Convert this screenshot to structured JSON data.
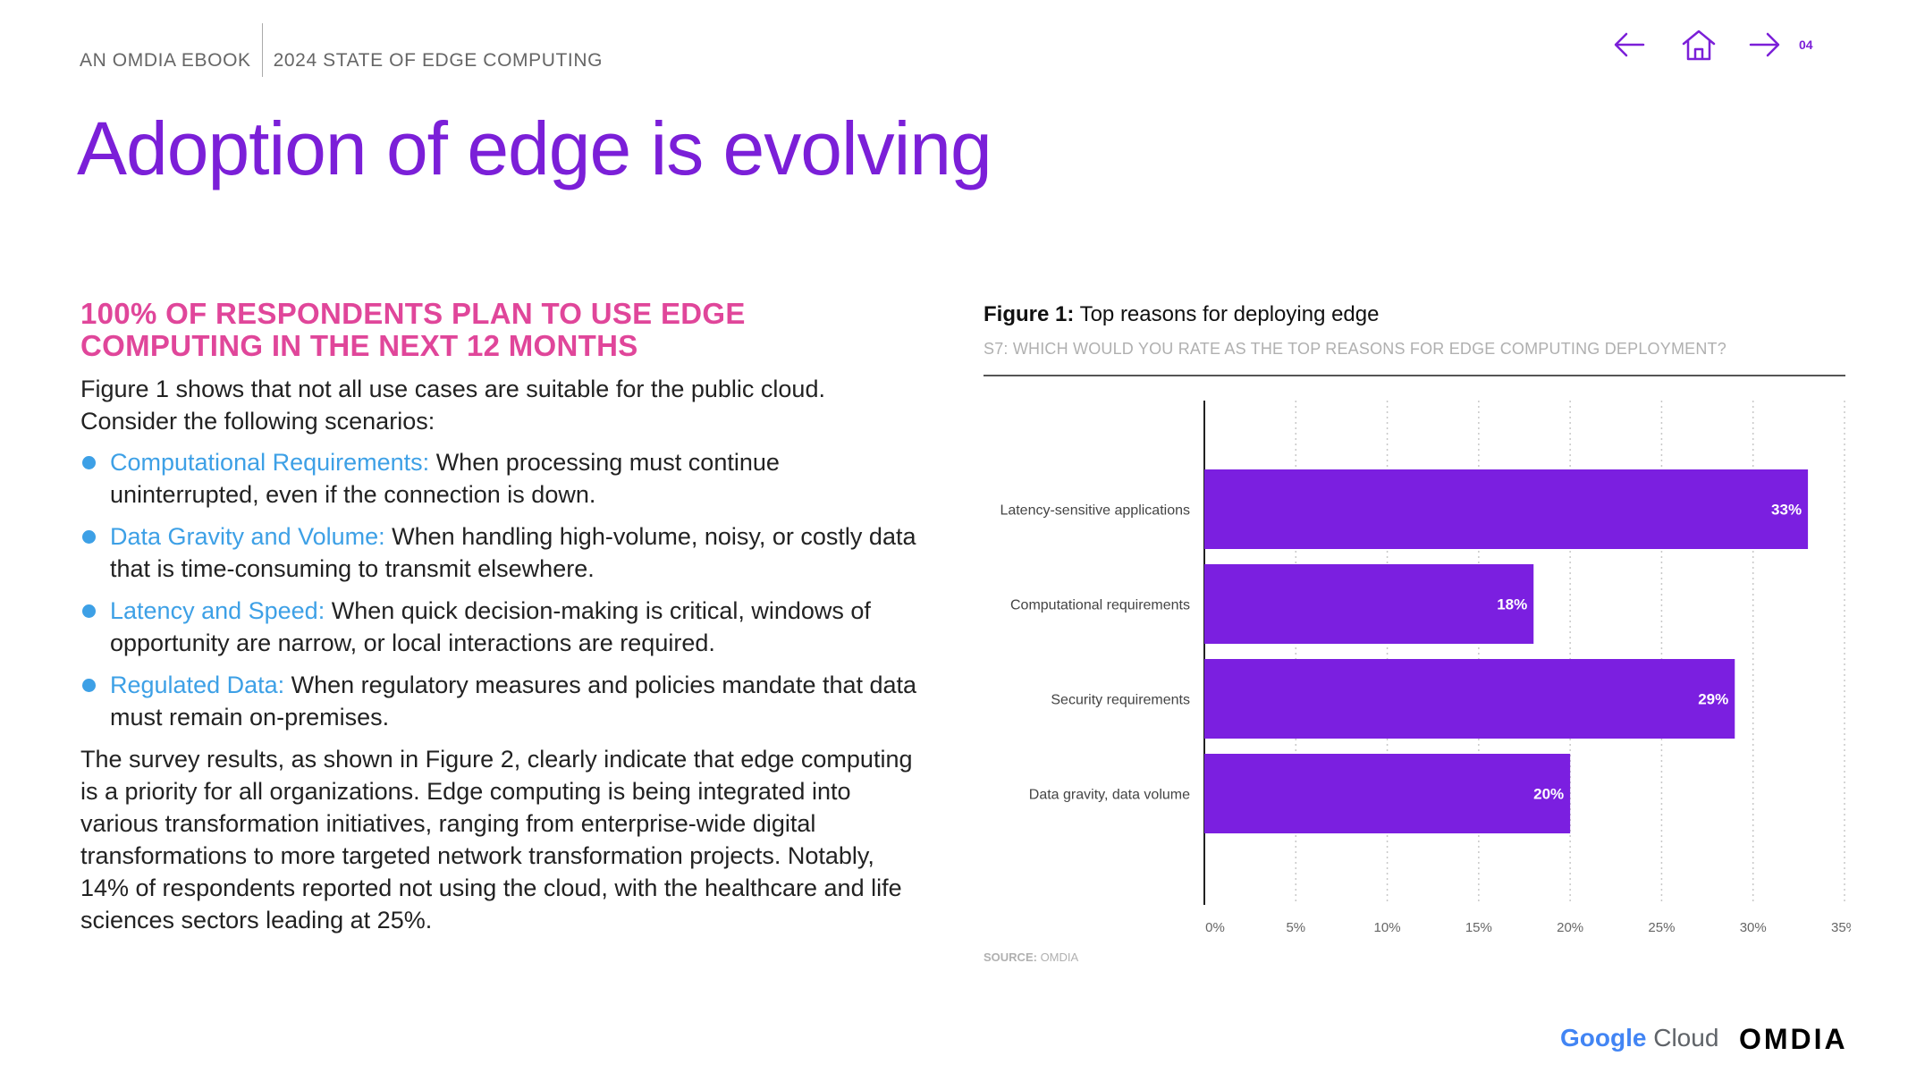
{
  "header": {
    "left": "AN OMDIA EBOOK",
    "right": "2024 STATE OF EDGE COMPUTING"
  },
  "nav": {
    "page_number": "04",
    "back_icon": "arrow-left-icon",
    "home_icon": "home-icon",
    "next_icon": "arrow-right-icon"
  },
  "title": "Adoption of edge is evolving",
  "left": {
    "subhead_line1": "100% OF RESPONDENTS PLAN TO USE EDGE",
    "subhead_line2": "COMPUTING IN THE NEXT 12 MONTHS",
    "intro": "Figure 1 shows that not all use cases are suitable for the public cloud. Consider the following scenarios:",
    "bullets": [
      {
        "label": "Computational Requirements:",
        "text": " When processing must continue uninterrupted, even if the connection is down."
      },
      {
        "label": "Data Gravity and Volume:",
        "text": " When handling high-volume, noisy, or costly data that is time-consuming to transmit elsewhere."
      },
      {
        "label": "Latency and Speed:",
        "text": " When quick decision-making is critical, windows of opportunity are narrow, or local interactions are required."
      },
      {
        "label": "Regulated Data:",
        "text": " When regulatory measures and policies mandate that data must remain on-premises."
      }
    ],
    "outro": "The survey results, as shown in Figure 2, clearly indicate that edge computing is a priority for all organizations. Edge computing is being integrated into various transformation initiatives, ranging from enterprise-wide digital transformations to more targeted network transformation projects. Notably, 14% of respondents reported not using the cloud, with the healthcare and life sciences sectors leading at 25%."
  },
  "figure": {
    "label": "Figure 1:",
    "title": " Top reasons for deploying edge",
    "question": "S7: WHICH WOULD YOU RATE AS THE TOP REASONS FOR EDGE COMPUTING DEPLOYMENT?",
    "source_label": "SOURCE:",
    "source_value": " OMDIA"
  },
  "chart_data": {
    "type": "bar",
    "orientation": "horizontal",
    "title": "Top reasons for deploying edge",
    "categories": [
      "Latency-sensitive applications",
      "Computational requirements",
      "Security requirements",
      "Data gravity, data volume"
    ],
    "values": [
      33,
      18,
      29,
      20
    ],
    "value_labels": [
      "33%",
      "18%",
      "29%",
      "20%"
    ],
    "xlim": [
      0,
      35
    ],
    "xticks": [
      "0%",
      "5%",
      "10%",
      "15%",
      "20%",
      "25%",
      "30%",
      "35%"
    ],
    "xtick_values": [
      0,
      5,
      10,
      15,
      20,
      25,
      30,
      35
    ],
    "grid": true,
    "bar_color": "#7b1fe0",
    "label_color": "#ffffff"
  },
  "footer": {
    "google_cloud_left": "Google",
    "google_cloud_right": " Cloud",
    "omdia": "OMDIA"
  },
  "colors": {
    "accent_purple": "#7b1fd8",
    "accent_pink": "#e0469a",
    "accent_blue": "#3da0e6"
  }
}
